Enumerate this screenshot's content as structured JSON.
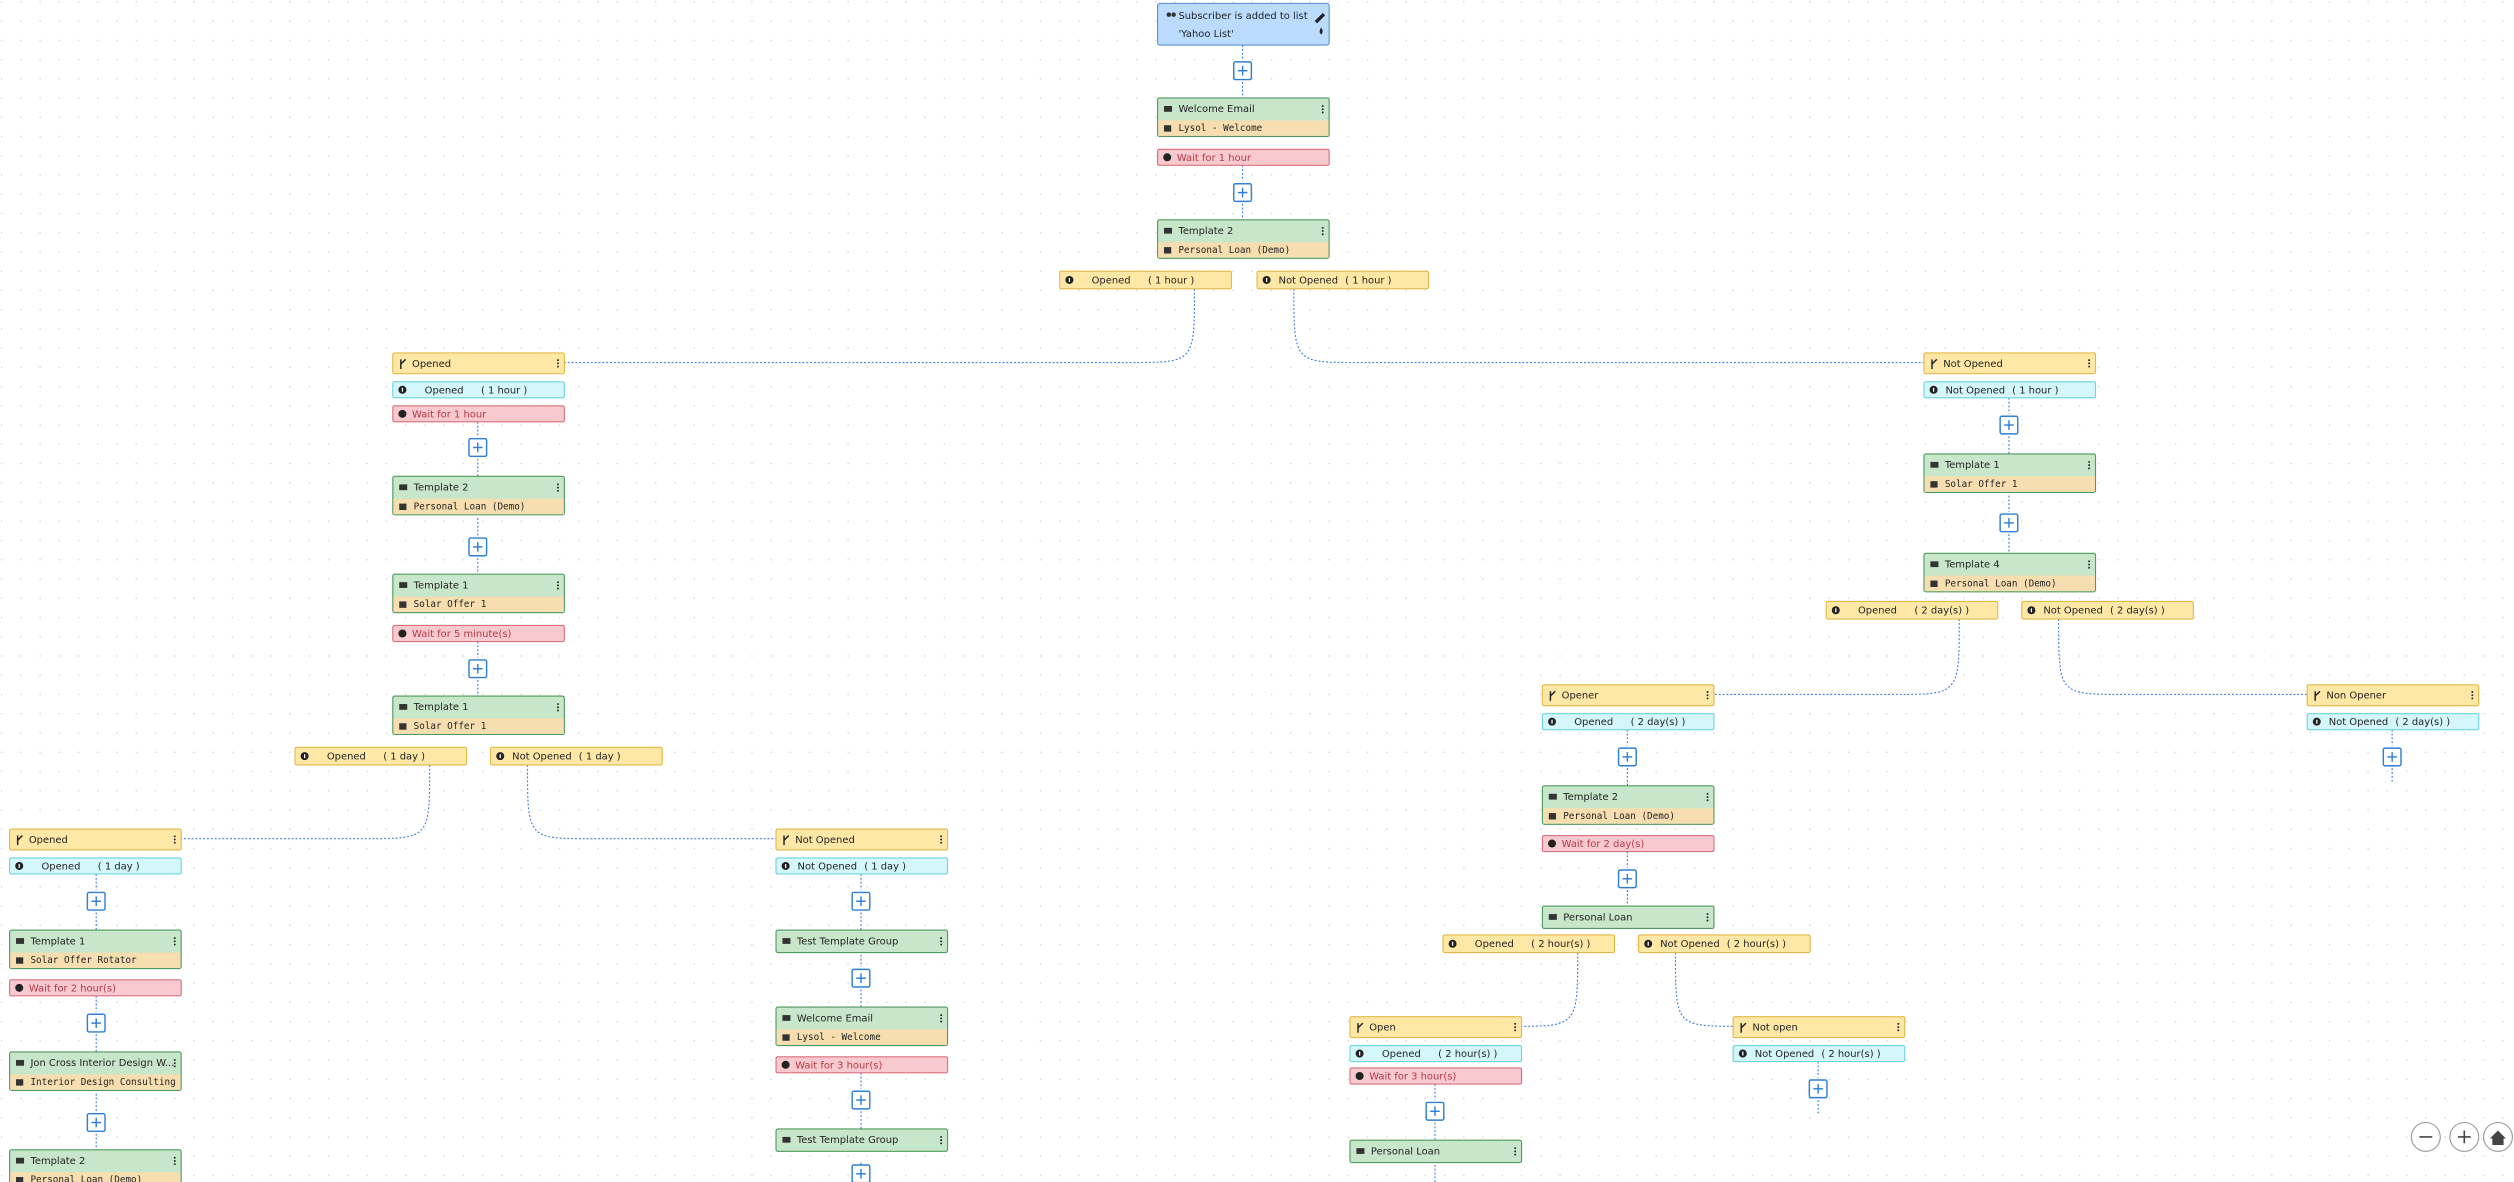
{
  "trigger": {
    "title": "Subscriber is added to list",
    "list": "'Yahoo List'"
  },
  "cards": [
    {
      "title": "Welcome Email",
      "subtitle": "Lysol - Welcome"
    },
    {
      "title": "Template 2",
      "subtitle": "Personal Loan (Demo)"
    },
    {
      "title": "Template 2",
      "subtitle": "Personal Loan (Demo)"
    },
    {
      "title": "Template 1",
      "subtitle": "Solar Offer 1"
    },
    {
      "title": "Template 1",
      "subtitle": "Solar Offer 1"
    },
    {
      "title": "Template 1",
      "subtitle": "Solar Offer Rotator"
    },
    {
      "title": "Jon Cross Interior Design W...",
      "subtitle": "Interior Design Consulting"
    },
    {
      "title": "Template 2",
      "subtitle": "Personal Loan (Demo)"
    },
    {
      "title": "Test Template Group"
    },
    {
      "title": "Welcome Email",
      "subtitle": "Lysol - Welcome"
    },
    {
      "title": "Test Template Group"
    },
    {
      "title": "Template 1",
      "subtitle": "Solar Offer 1"
    },
    {
      "title": "Template 4",
      "subtitle": "Personal Loan (Demo)"
    },
    {
      "title": "Template 2",
      "subtitle": "Personal Loan (Demo)"
    },
    {
      "title": "Personal Loan"
    },
    {
      "title": "Personal Loan"
    }
  ],
  "waits": [
    "Wait for 1 hour",
    "Wait for 1 hour",
    "Wait for 5 minute(s)",
    "Wait for 2 hour(s)",
    "Wait for 3 hour(s)",
    "Wait for 2 day(s)",
    "Wait for 3 hour(s)"
  ],
  "conditions": [
    {
      "label": "Opened",
      "delay": "( 1 hour )"
    },
    {
      "label": "Not Opened",
      "delay": "( 1 hour )"
    },
    {
      "label": "Opened",
      "delay": "( 1 day )"
    },
    {
      "label": "Not Opened",
      "delay": "( 1 day )"
    },
    {
      "label": "Opened",
      "delay": "( 2 day(s) )"
    },
    {
      "label": "Not Opened",
      "delay": "( 2 day(s) )"
    },
    {
      "label": "Opened",
      "delay": "( 2 hour(s) )"
    },
    {
      "label": "Not Opened",
      "delay": "( 2 hour(s) )"
    }
  ],
  "branches": [
    {
      "name": "Opened",
      "condition": {
        "label": "Opened",
        "delay": "( 1 hour )"
      }
    },
    {
      "name": "Not Opened",
      "condition": {
        "label": "Not Opened",
        "delay": "( 1 hour )"
      }
    },
    {
      "name": "Opened",
      "condition": {
        "label": "Opened",
        "delay": "( 1 day )"
      }
    },
    {
      "name": "Not Opened",
      "condition": {
        "label": "Not Opened",
        "delay": "( 1 day )"
      }
    },
    {
      "name": "Opener",
      "condition": {
        "label": "Opened",
        "delay": "( 2 day(s) )"
      }
    },
    {
      "name": "Non Opener",
      "condition": {
        "label": "Not Opened",
        "delay": "( 2 day(s) )"
      }
    },
    {
      "name": "Open",
      "condition": {
        "label": "Opened",
        "delay": "( 2 hour(s) )"
      }
    },
    {
      "name": "Not open",
      "condition": {
        "label": "Not Opened",
        "delay": "( 2 hour(s) )"
      }
    }
  ]
}
